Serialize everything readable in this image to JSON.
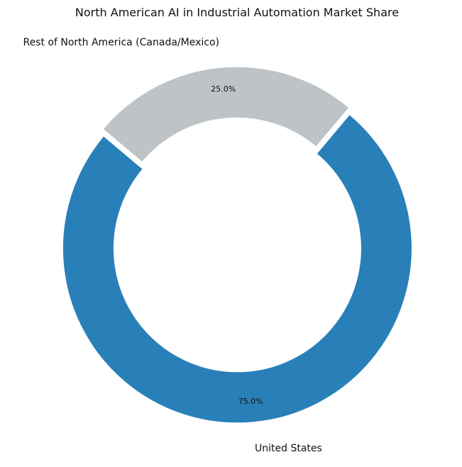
{
  "chart_data": {
    "type": "pie",
    "variant": "donut",
    "title": "North American AI in Industrial Automation Market Share",
    "slices": [
      {
        "label": "United States",
        "value": 75.0,
        "percent_label": "75.0%",
        "color": "#2980b9"
      },
      {
        "label": "Rest of North America (Canada/Mexico)",
        "value": 25.0,
        "percent_label": "25.0%",
        "color": "#bdc3c7"
      }
    ],
    "start_angle_deg": 140,
    "direction": "counterclockwise",
    "explode": [
      0.02,
      0.02
    ],
    "legend": "none"
  }
}
